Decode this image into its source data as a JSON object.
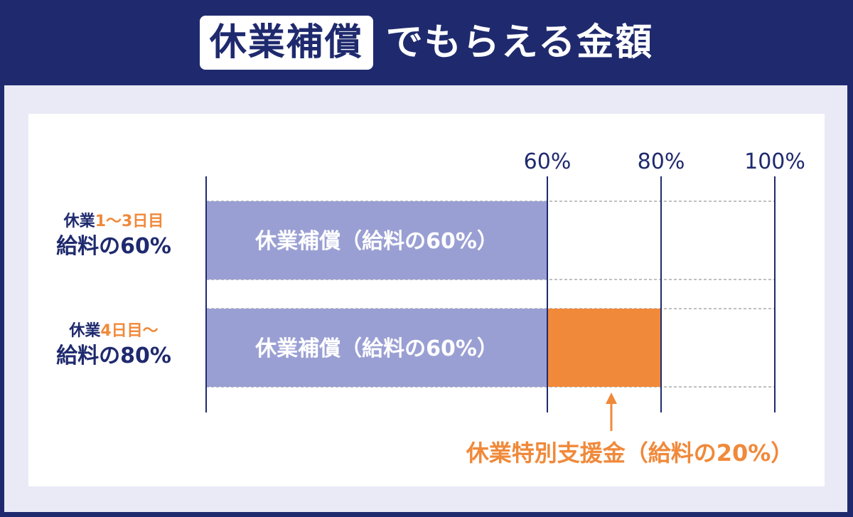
{
  "title": {
    "highlight": "休業補償",
    "rest": "でもらえる金額"
  },
  "colors": {
    "navy": "#1f2a6e",
    "bar_compensation": "#9a9fd3",
    "bar_subsidy": "#f0893a",
    "panel_bg": "#e9eaf6"
  },
  "rows": [
    {
      "prefix": "休業",
      "period": "1〜3日目",
      "rate": "給料の60%"
    },
    {
      "prefix": "休業",
      "period": "4日目〜",
      "rate": "給料の80%"
    }
  ],
  "chart_data": {
    "type": "bar",
    "orientation": "horizontal-stacked",
    "x_ticks": [
      "60%",
      "80%",
      "100%"
    ],
    "x_tick_values": [
      60,
      80,
      100
    ],
    "xlim": [
      0,
      100
    ],
    "categories": [
      "休業1〜3日目",
      "休業4日目〜"
    ],
    "series": [
      {
        "name": "休業補償（給料の60%）",
        "values": [
          60,
          60
        ],
        "color": "#9a9fd3"
      },
      {
        "name": "休業特別支援金（給料の20%）",
        "values": [
          0,
          20
        ],
        "color": "#f0893a"
      }
    ],
    "annotation": "休業特別支援金（給料の20%）"
  }
}
